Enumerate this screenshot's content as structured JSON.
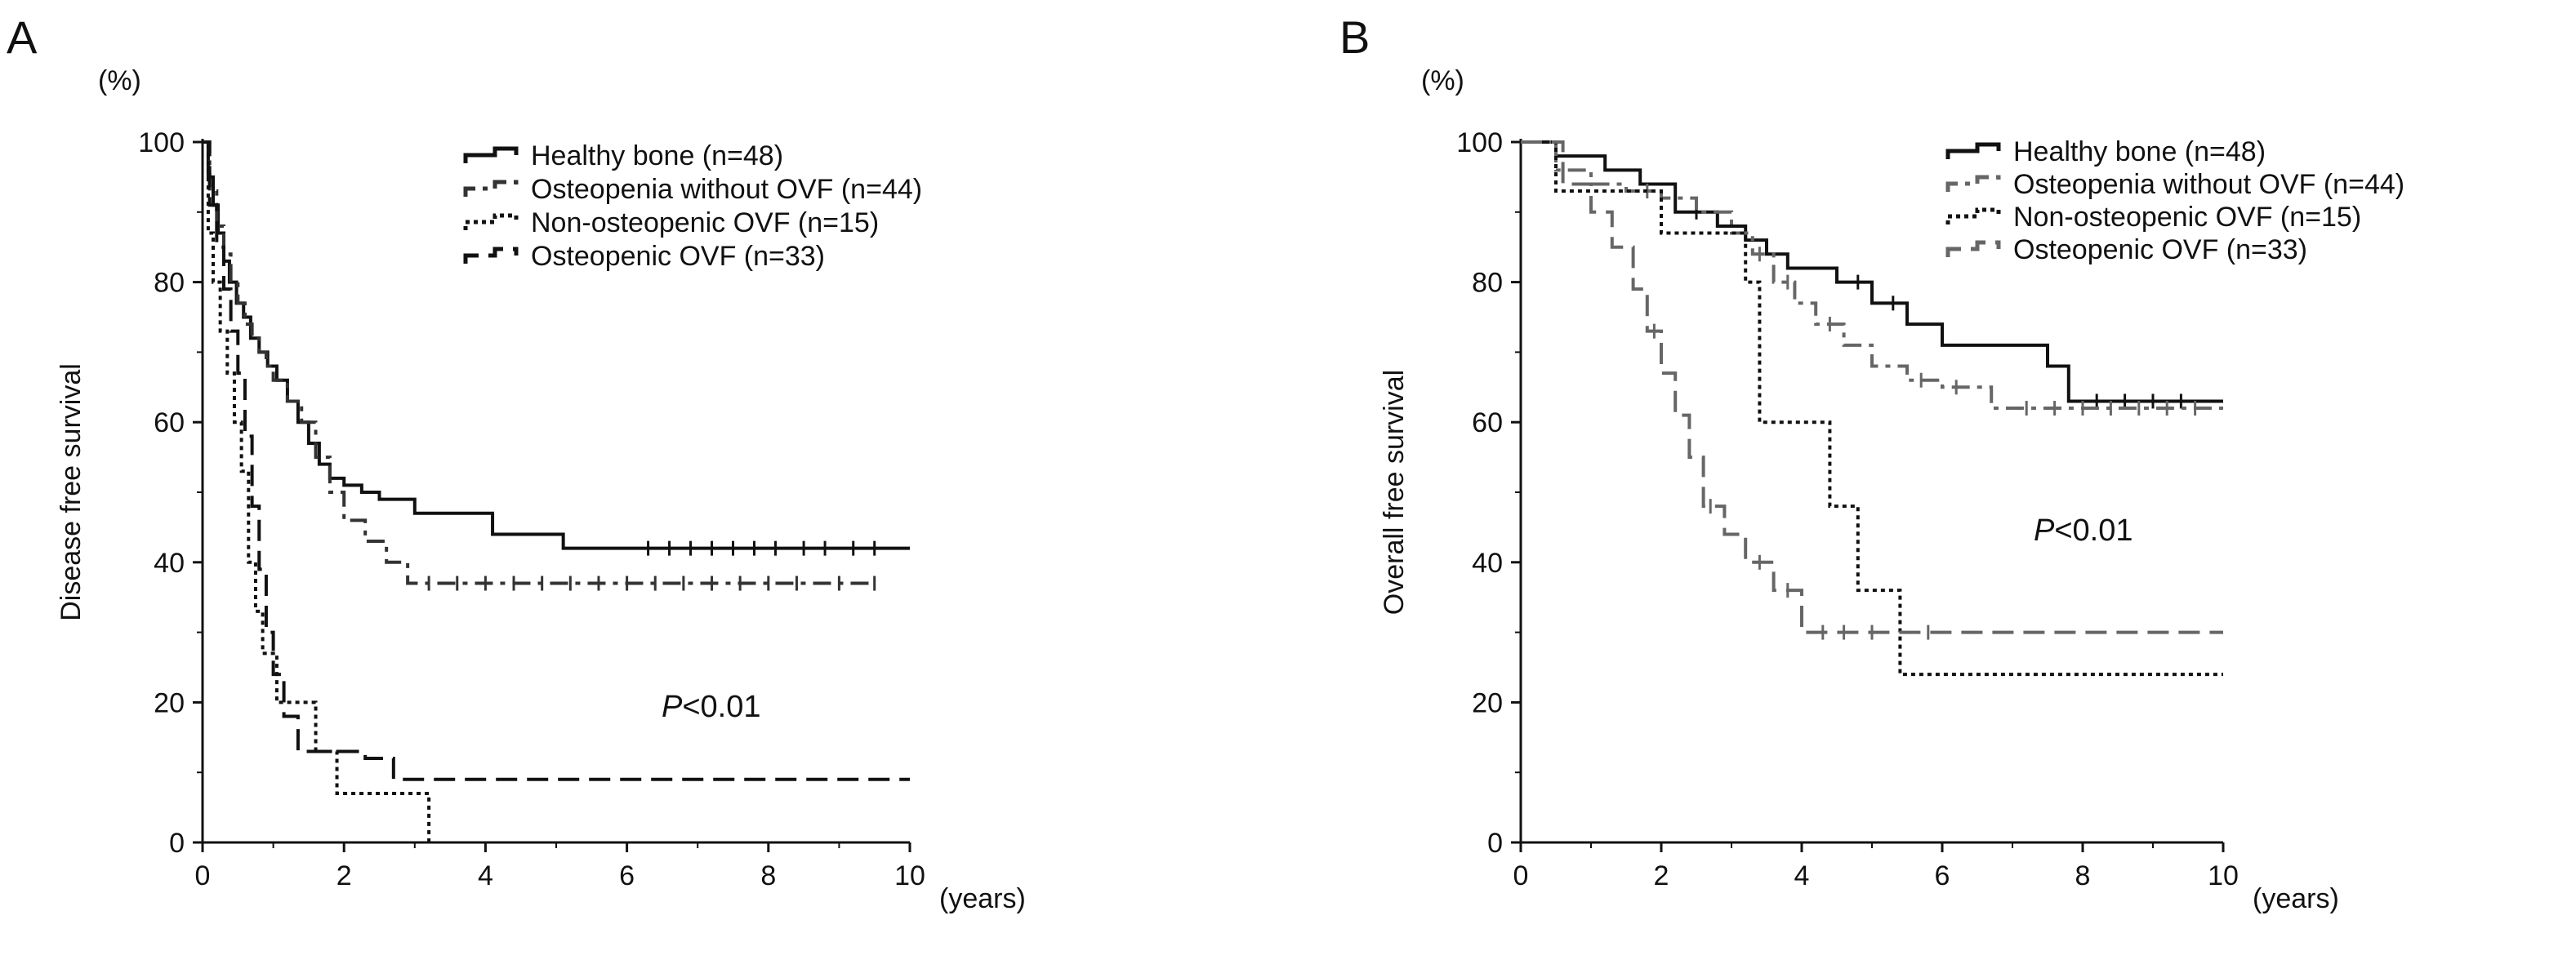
{
  "chart_data": [
    {
      "type": "line",
      "panel_label": "A",
      "ylabel": "Disease free survival",
      "y_unit": "(%)",
      "x_unit": "(years)",
      "xlim": [
        0,
        10
      ],
      "ylim": [
        0,
        100
      ],
      "x_ticks": [
        "0",
        "2",
        "4",
        "6",
        "8",
        "10"
      ],
      "y_ticks": [
        "0",
        "20",
        "40",
        "60",
        "80",
        "100"
      ],
      "p_value": {
        "italic": "P",
        "rest": "<0.01"
      },
      "grid": false,
      "legend_position": "top-right",
      "series": [
        {
          "name": "Healthy bone (n=48)",
          "style": "solid",
          "color": "#111111",
          "x": [
            0,
            0.08,
            0.15,
            0.22,
            0.3,
            0.38,
            0.48,
            0.58,
            0.68,
            0.8,
            0.92,
            1.05,
            1.2,
            1.35,
            1.5,
            1.65,
            1.8,
            2.0,
            2.25,
            2.5,
            3.0,
            4.1,
            5.1,
            10.0
          ],
          "y": [
            100,
            95,
            91,
            87,
            83,
            80,
            77,
            75,
            72,
            70,
            68,
            66,
            63,
            60,
            57,
            54,
            52,
            51,
            50,
            49,
            47,
            44,
            42,
            42
          ],
          "censors": [
            6.3,
            6.6,
            6.9,
            7.2,
            7.5,
            7.8,
            8.1,
            8.5,
            8.8,
            9.2,
            9.5
          ]
        },
        {
          "name": "Osteopenia without OVF (n=44)",
          "style": "dash-dot",
          "color": "#333333",
          "x": [
            0,
            0.1,
            0.2,
            0.3,
            0.4,
            0.5,
            0.6,
            0.7,
            0.8,
            0.9,
            1.0,
            1.2,
            1.4,
            1.6,
            1.8,
            2.0,
            2.3,
            2.6,
            2.9,
            9.5
          ],
          "y": [
            100,
            93,
            88,
            84,
            80,
            77,
            74,
            72,
            70,
            68,
            66,
            63,
            60,
            55,
            50,
            46,
            43,
            40,
            37,
            37
          ],
          "censors": [
            3.2,
            3.6,
            4.0,
            4.4,
            4.8,
            5.2,
            5.6,
            6.0,
            6.4,
            6.8,
            7.2,
            7.6,
            8.0,
            8.4,
            9.0,
            9.5
          ]
        },
        {
          "name": "Non-osteopenic OVF (n=15)",
          "style": "dotted",
          "color": "#111111",
          "x": [
            0,
            0.08,
            0.15,
            0.25,
            0.35,
            0.45,
            0.55,
            0.65,
            0.75,
            0.85,
            1.05,
            1.3,
            1.6,
            1.9,
            2.5,
            3.2
          ],
          "y": [
            100,
            87,
            80,
            73,
            67,
            60,
            53,
            40,
            33,
            27,
            20,
            20,
            13,
            7,
            7,
            0
          ],
          "censors": []
        },
        {
          "name": "Osteopenic OVF (n=33)",
          "style": "dashed",
          "color": "#111111",
          "x": [
            0,
            0.1,
            0.2,
            0.3,
            0.4,
            0.5,
            0.6,
            0.7,
            0.8,
            0.9,
            1.0,
            1.15,
            1.35,
            1.6,
            1.9,
            2.3,
            2.7,
            10.0
          ],
          "y": [
            100,
            91,
            85,
            79,
            73,
            67,
            58,
            48,
            39,
            30,
            24,
            18,
            13,
            13,
            13,
            12,
            9,
            9
          ],
          "censors": []
        }
      ]
    },
    {
      "type": "line",
      "panel_label": "B",
      "ylabel": "Overall free survival",
      "y_unit": "(%)",
      "x_unit": "(years)",
      "xlim": [
        0,
        10
      ],
      "ylim": [
        0,
        100
      ],
      "x_ticks": [
        "0",
        "2",
        "4",
        "6",
        "8",
        "10"
      ],
      "y_ticks": [
        "0",
        "20",
        "40",
        "60",
        "80",
        "100"
      ],
      "p_value": {
        "italic": "P",
        "rest": "<0.01"
      },
      "grid": false,
      "legend_position": "top-right",
      "series": [
        {
          "name": "Healthy bone (n=48)",
          "style": "solid",
          "color": "#111111",
          "x": [
            0,
            0.5,
            1.2,
            1.7,
            2.2,
            2.8,
            3.2,
            3.5,
            3.8,
            4.5,
            5.0,
            5.5,
            6.0,
            7.5,
            7.8,
            10.0
          ],
          "y": [
            100,
            98,
            96,
            94,
            90,
            88,
            86,
            84,
            82,
            80,
            77,
            74,
            71,
            68,
            63,
            63
          ],
          "censors": [
            2.5,
            4.8,
            5.3,
            8.2,
            8.6,
            9.0,
            9.4
          ]
        },
        {
          "name": "Osteopenia without OVF (n=44)",
          "style": "dash-dot",
          "color": "#666666",
          "x": [
            0,
            0.5,
            1.0,
            1.5,
            2.0,
            2.5,
            3.0,
            3.3,
            3.6,
            3.9,
            4.2,
            4.6,
            5.0,
            5.5,
            6.0,
            6.7,
            10.0
          ],
          "y": [
            100,
            96,
            94,
            93,
            92,
            90,
            87,
            84,
            80,
            77,
            74,
            71,
            68,
            66,
            65,
            62,
            62
          ],
          "censors": [
            1.8,
            3.4,
            3.8,
            4.4,
            5.7,
            6.2,
            7.2,
            7.6,
            8.0,
            8.4,
            8.8,
            9.2,
            9.6
          ]
        },
        {
          "name": "Non-osteopenic OVF (n=15)",
          "style": "dotted",
          "color": "#111111",
          "x": [
            0,
            0.5,
            1.4,
            2.0,
            2.9,
            3.2,
            3.4,
            4.4,
            4.8,
            5.4,
            10.0
          ],
          "y": [
            100,
            93,
            93,
            87,
            87,
            80,
            60,
            48,
            36,
            24,
            24
          ],
          "censors": []
        },
        {
          "name": "Osteopenic OVF (n=33)",
          "style": "dashed",
          "color": "#666666",
          "x": [
            0,
            0.6,
            1.0,
            1.3,
            1.6,
            1.8,
            2.0,
            2.2,
            2.4,
            2.6,
            2.9,
            3.2,
            3.6,
            4.0,
            10.0
          ],
          "y": [
            100,
            94,
            90,
            85,
            79,
            73,
            67,
            61,
            55,
            48,
            44,
            40,
            36,
            30,
            30
          ],
          "censors": [
            1.9,
            2.7,
            3.4,
            3.8,
            4.3,
            4.6,
            5.0,
            5.8
          ]
        }
      ]
    }
  ]
}
